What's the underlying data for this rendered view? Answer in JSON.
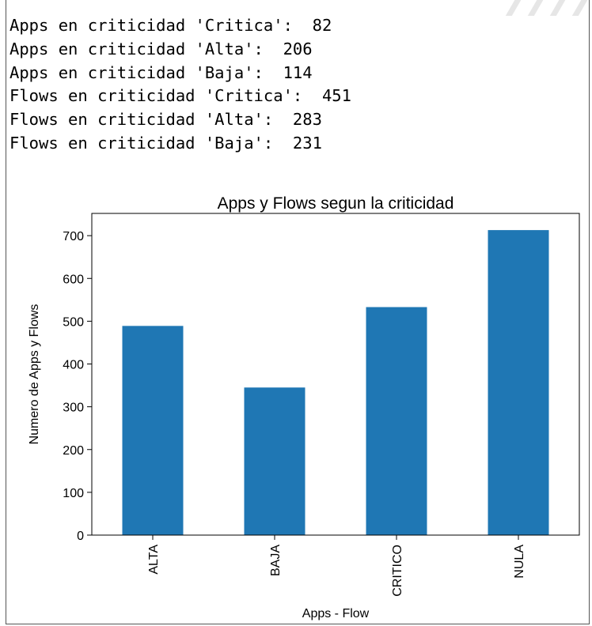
{
  "console": {
    "lines": [
      "Apps en criticidad 'Critica':  82",
      "Apps en criticidad 'Alta':  206",
      "Apps en criticidad 'Baja':  114",
      "Flows en criticidad 'Critica':  451",
      "Flows en criticidad 'Alta':  283",
      "Flows en criticidad 'Baja':  231"
    ]
  },
  "colors": {
    "bar": "#1f77b4",
    "axis": "#000000"
  },
  "chart_data": {
    "type": "bar",
    "title": "Apps y Flows segun la criticidad",
    "xlabel": "Apps - Flow",
    "ylabel": "Numero de Apps y Flows",
    "categories": [
      "ALTA",
      "BAJA",
      "CRITICO",
      "NULA"
    ],
    "values": [
      489,
      345,
      533,
      713
    ],
    "ylim": [
      0,
      752
    ],
    "yticks": [
      0,
      100,
      200,
      300,
      400,
      500,
      600,
      700
    ],
    "grid": false,
    "legend": "none"
  }
}
